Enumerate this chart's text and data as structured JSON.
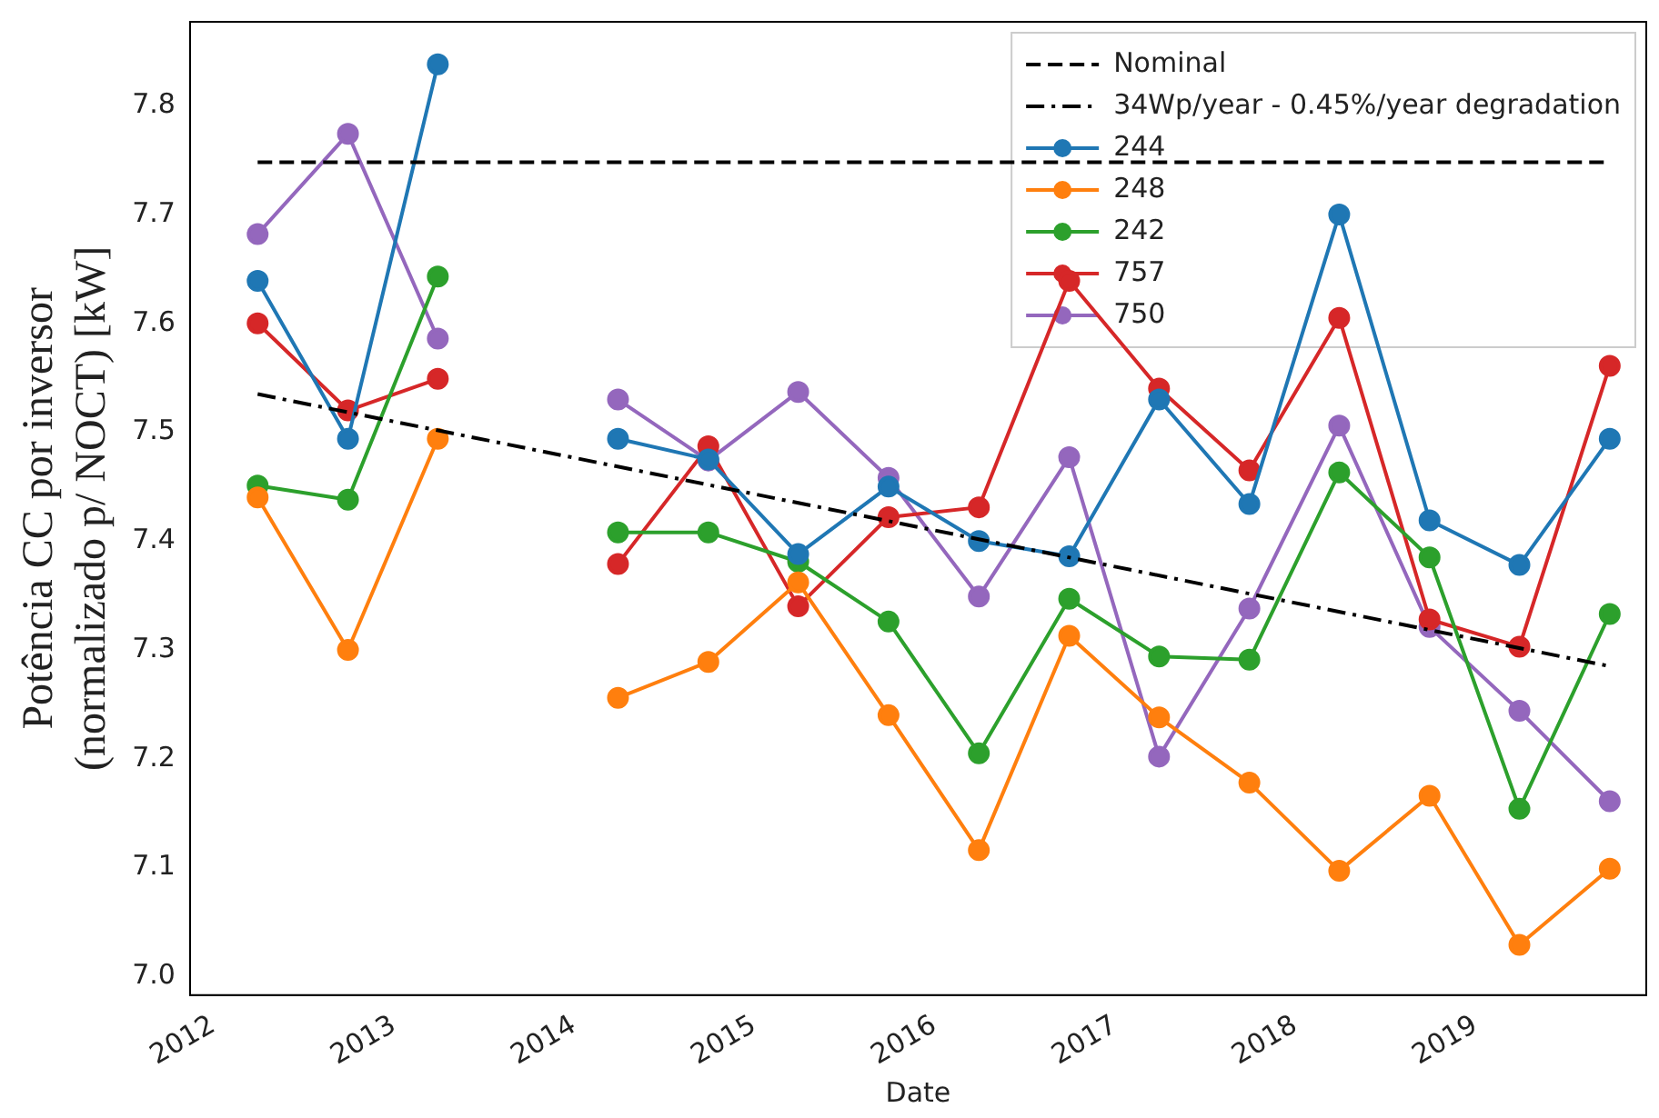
{
  "chart_data": {
    "type": "line",
    "xlabel": "Date",
    "ylabel": "Potência CC por inversor\n(normalizado p/ NOCT) [kW]",
    "x": [
      "2012-03-31",
      "2012-09-30",
      "2013-03-31",
      "2013-09-30",
      "2014-03-31",
      "2014-09-30",
      "2015-03-31",
      "2015-09-30",
      "2016-03-31",
      "2016-09-30",
      "2017-03-31",
      "2017-09-30",
      "2018-03-31",
      "2018-09-30",
      "2019-03-31",
      "2019-09-30"
    ],
    "series": [
      {
        "name": "Nominal",
        "type": "line",
        "color": "#000000",
        "line_style": "dashed",
        "marker": "none",
        "x": [
          "2012-03-31",
          "2019-09-30"
        ],
        "values": [
          7.748,
          7.748
        ]
      },
      {
        "name": "34Wp/year - 0.45%/year degradation",
        "type": "line",
        "color": "#000000",
        "line_style": "dashdot",
        "marker": "none",
        "x": [
          "2012-03-31",
          "2019-09-30"
        ],
        "values": [
          7.535,
          7.285
        ]
      },
      {
        "name": "244",
        "color": "#1f77b4",
        "values": [
          7.639,
          7.494,
          7.838,
          null,
          7.494,
          7.475,
          7.388,
          7.45,
          7.4,
          7.386,
          7.53,
          7.434,
          7.7,
          7.419,
          7.378,
          7.494
        ]
      },
      {
        "name": "248",
        "color": "#ff7f0e",
        "values": [
          7.44,
          7.3,
          7.494,
          null,
          7.256,
          7.289,
          7.362,
          7.24,
          7.116,
          7.313,
          7.238,
          7.178,
          7.097,
          7.166,
          7.029,
          7.099
        ]
      },
      {
        "name": "242",
        "color": "#2ca02c",
        "values": [
          7.451,
          7.438,
          7.643,
          null,
          7.408,
          7.408,
          7.381,
          7.326,
          7.205,
          7.347,
          7.294,
          7.291,
          7.463,
          7.385,
          7.154,
          7.333
        ]
      },
      {
        "name": "757",
        "color": "#d62728",
        "values": [
          7.6,
          7.52,
          7.549,
          null,
          7.379,
          7.487,
          7.34,
          7.422,
          7.431,
          7.639,
          7.54,
          7.465,
          7.605,
          7.328,
          7.303,
          7.561
        ]
      },
      {
        "name": "750",
        "color": "#9467bd",
        "values": [
          7.682,
          7.774,
          7.586,
          null,
          7.53,
          7.474,
          7.537,
          7.458,
          7.349,
          7.477,
          7.202,
          7.338,
          7.506,
          7.321,
          7.244,
          7.161
        ]
      }
    ],
    "marker": "circle",
    "line_style": "solid",
    "legend": "top right",
    "grid": false,
    "xlim": [
      "2011-11-15",
      "2019-12-13"
    ],
    "xticks": [
      "2012",
      "2013",
      "2014",
      "2015",
      "2016",
      "2017",
      "2018",
      "2019"
    ],
    "ylim": [
      6.983,
      7.877
    ],
    "yticks": [
      {
        "value": 7.0,
        "label": "7.0"
      },
      {
        "value": 7.1,
        "label": "7.1"
      },
      {
        "value": 7.2,
        "label": "7.2"
      },
      {
        "value": 7.3,
        "label": "7.3"
      },
      {
        "value": 7.4,
        "label": "7.4"
      },
      {
        "value": 7.5,
        "label": "7.5"
      },
      {
        "value": 7.6,
        "label": "7.6"
      },
      {
        "value": 7.7,
        "label": "7.7"
      },
      {
        "value": 7.8,
        "label": "7.8"
      }
    ]
  }
}
